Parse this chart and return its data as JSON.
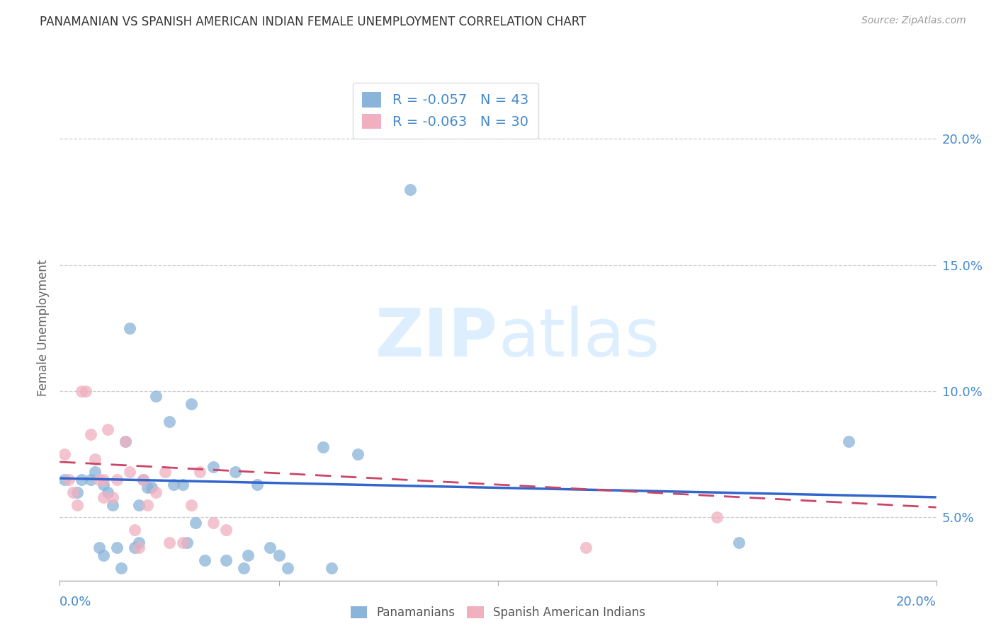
{
  "title": "PANAMANIAN VS SPANISH AMERICAN INDIAN FEMALE UNEMPLOYMENT CORRELATION CHART",
  "source": "Source: ZipAtlas.com",
  "ylabel": "Female Unemployment",
  "y_ticks": [
    0.05,
    0.1,
    0.15,
    0.2
  ],
  "y_tick_labels": [
    "5.0%",
    "10.0%",
    "15.0%",
    "20.0%"
  ],
  "xlim": [
    0.0,
    0.2
  ],
  "ylim": [
    0.025,
    0.225
  ],
  "legend_r1": "R = -0.057   N = 43",
  "legend_r2": "R = -0.063   N = 30",
  "blue_color": "#8ab4d9",
  "pink_color": "#f0b0c0",
  "blue_line_color": "#3366cc",
  "pink_line_color": "#cc4466",
  "grid_color": "#cccccc",
  "axis_label_color": "#4488cc",
  "watermark_color": "#ddeeff",
  "panamanians_x": [
    0.001,
    0.004,
    0.005,
    0.007,
    0.008,
    0.009,
    0.01,
    0.01,
    0.011,
    0.012,
    0.013,
    0.014,
    0.015,
    0.016,
    0.017,
    0.018,
    0.018,
    0.019,
    0.02,
    0.021,
    0.022,
    0.025,
    0.026,
    0.028,
    0.029,
    0.03,
    0.031,
    0.033,
    0.035,
    0.038,
    0.04,
    0.042,
    0.043,
    0.045,
    0.048,
    0.05,
    0.052,
    0.06,
    0.062,
    0.068,
    0.08,
    0.155,
    0.18
  ],
  "panamanians_y": [
    0.065,
    0.06,
    0.065,
    0.065,
    0.068,
    0.038,
    0.035,
    0.063,
    0.06,
    0.055,
    0.038,
    0.03,
    0.08,
    0.125,
    0.038,
    0.055,
    0.04,
    0.065,
    0.062,
    0.062,
    0.098,
    0.088,
    0.063,
    0.063,
    0.04,
    0.095,
    0.048,
    0.033,
    0.07,
    0.033,
    0.068,
    0.03,
    0.035,
    0.063,
    0.038,
    0.035,
    0.03,
    0.078,
    0.03,
    0.075,
    0.18,
    0.04,
    0.08
  ],
  "spanish_x": [
    0.001,
    0.002,
    0.003,
    0.004,
    0.005,
    0.006,
    0.007,
    0.008,
    0.009,
    0.01,
    0.01,
    0.011,
    0.012,
    0.013,
    0.015,
    0.016,
    0.017,
    0.018,
    0.019,
    0.02,
    0.022,
    0.024,
    0.025,
    0.028,
    0.03,
    0.032,
    0.035,
    0.038,
    0.12,
    0.15
  ],
  "spanish_y": [
    0.075,
    0.065,
    0.06,
    0.055,
    0.1,
    0.1,
    0.083,
    0.073,
    0.065,
    0.065,
    0.058,
    0.085,
    0.058,
    0.065,
    0.08,
    0.068,
    0.045,
    0.038,
    0.065,
    0.055,
    0.06,
    0.068,
    0.04,
    0.04,
    0.055,
    0.068,
    0.048,
    0.045,
    0.038,
    0.05
  ],
  "blue_trendline_start_y": 0.0655,
  "blue_trendline_end_y": 0.058,
  "pink_trendline_start_y": 0.072,
  "pink_trendline_end_y": 0.054
}
